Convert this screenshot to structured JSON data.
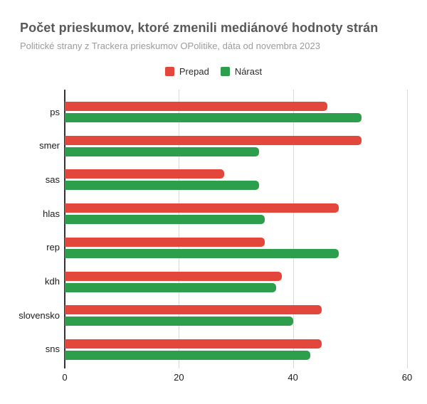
{
  "header": {
    "title": "Počet prieskumov, ktoré zmenili mediánové hodnoty strán",
    "subtitle": "Politické strany z Trackera prieskumov OPolitike, dáta od novembra 2023"
  },
  "legend": {
    "items": [
      {
        "label": "Prepad",
        "color": "#e3463b"
      },
      {
        "label": "Nárast",
        "color": "#2d9e4c"
      }
    ]
  },
  "colors": {
    "prepad": "#e3463b",
    "narast": "#2d9e4c",
    "gridline": "#d9d9d9",
    "baseline": "#333333"
  },
  "chart_data": {
    "type": "bar",
    "orientation": "horizontal",
    "title": "Počet prieskumov, ktoré zmenili mediánové hodnoty strán",
    "subtitle": "Politické strany z Trackera prieskumov OPolitike, dáta od novembra 2023",
    "categories": [
      "ps",
      "smer",
      "sas",
      "hlas",
      "rep",
      "kdh",
      "slovensko",
      "sns"
    ],
    "series": [
      {
        "name": "Prepad",
        "color": "#e3463b",
        "values": [
          46,
          52,
          28,
          48,
          35,
          38,
          45,
          45
        ]
      },
      {
        "name": "Nárast",
        "color": "#2d9e4c",
        "values": [
          52,
          34,
          34,
          35,
          48,
          37,
          40,
          43
        ]
      }
    ],
    "xlabel": "",
    "ylabel": "",
    "xlim": [
      0,
      60
    ],
    "x_ticks": [
      0,
      20,
      40,
      60
    ],
    "grid": true,
    "legend_position": "top"
  }
}
